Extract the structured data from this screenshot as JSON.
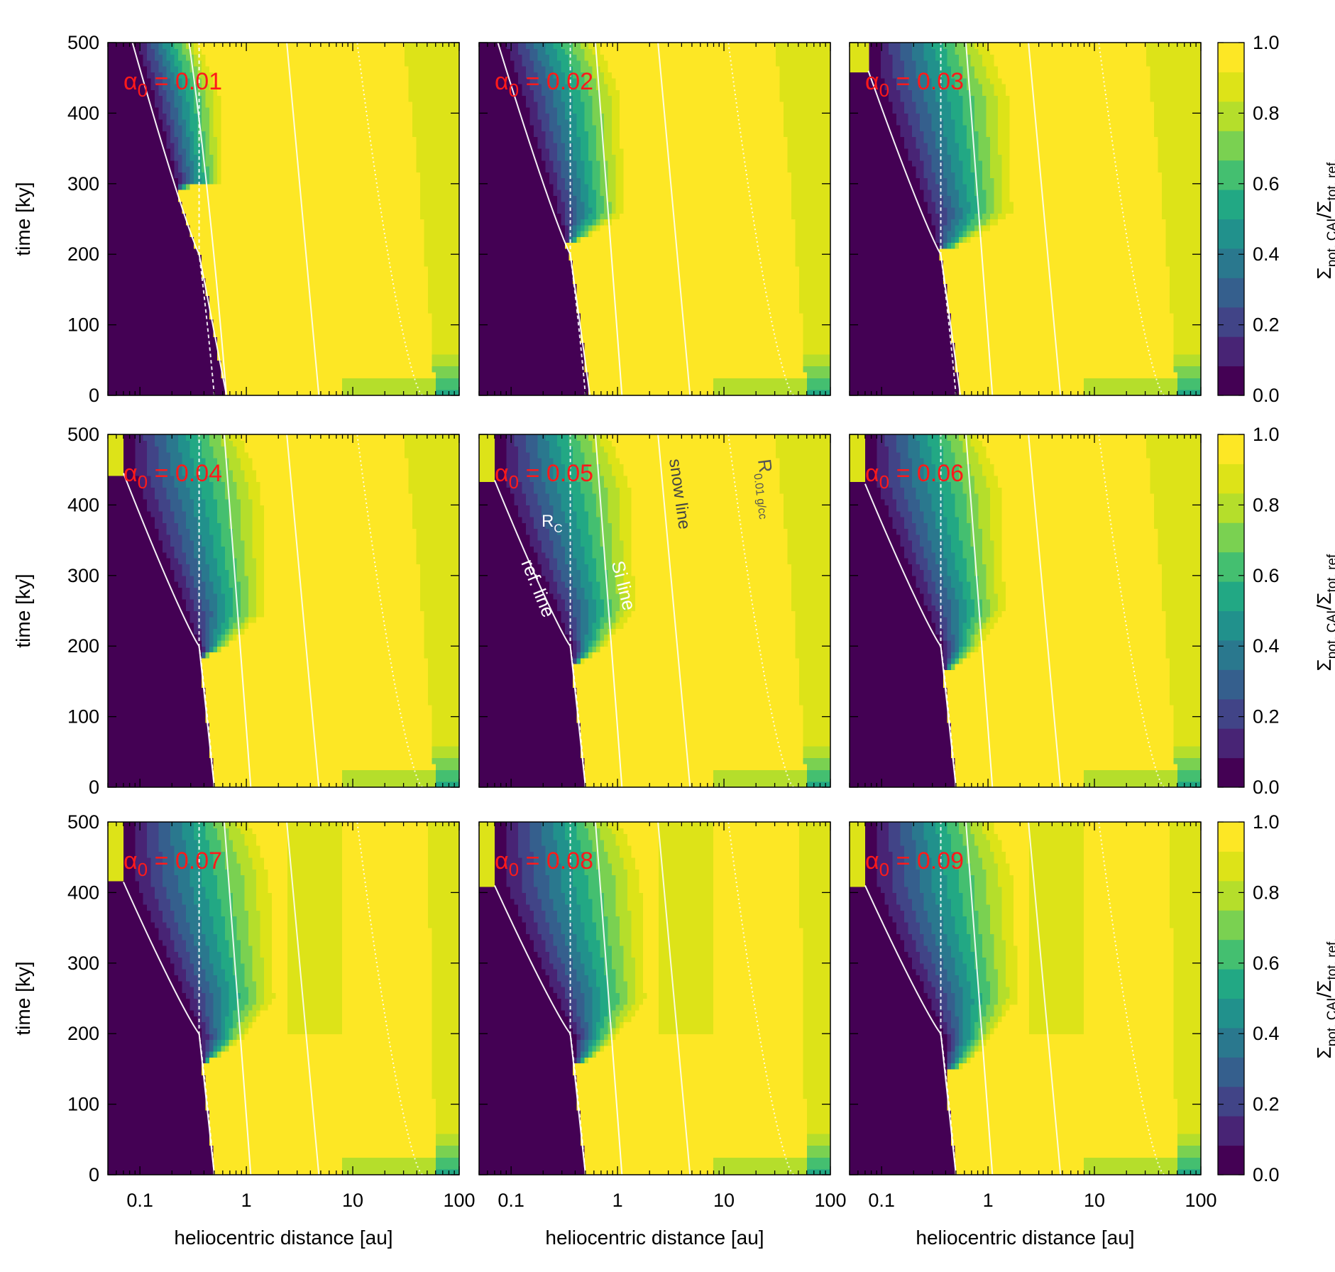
{
  "chart_data": {
    "type": "heatmap",
    "layout": "3x3 grid of panels",
    "x_axis": {
      "label": "heliocentric distance [au]",
      "scale": "log",
      "range": [
        0.05,
        100
      ],
      "tick_labels": [
        "0.1",
        "1",
        "10",
        "100"
      ],
      "tick_values": [
        0.1,
        1,
        10,
        100
      ]
    },
    "y_axis": {
      "label": "time [ky]",
      "range": [
        0,
        500
      ],
      "tick_labels": [
        "0",
        "100",
        "200",
        "300",
        "400",
        "500"
      ],
      "tick_values": [
        0,
        100,
        200,
        300,
        400,
        500
      ]
    },
    "colorbar": {
      "label_main": "Σ",
      "label_sub1": "pot. CAI",
      "label_slash": "/Σ",
      "label_sub2": "tot. ref.",
      "range": [
        0,
        1
      ],
      "levels": 12,
      "tick_labels": [
        "0.0",
        "0.2",
        "0.4",
        "0.6",
        "0.8",
        "1.0"
      ],
      "tick_values": [
        0,
        0.2,
        0.4,
        0.6,
        0.8,
        1.0
      ],
      "palette": [
        "#440154",
        "#482475",
        "#414487",
        "#355f8d",
        "#2a788e",
        "#21918c",
        "#22a884",
        "#44bf70",
        "#7ad151",
        "#b5de2b",
        "#dde318",
        "#fde725"
      ]
    },
    "annotations": {
      "rc": "R",
      "rc_sub": "C",
      "ref_line": "ref. line",
      "si_line": "Si line",
      "snow_line": "snow line",
      "r001": "R",
      "r001_sub": "0.01 g/cc"
    },
    "panels": [
      {
        "label_symbol": "α",
        "label_sub": "0",
        "label_value": " = 0.01",
        "alpha0": 0.01,
        "ref_base": 0.65,
        "ref_top": 0.085,
        "rc_tmax": 500,
        "shade_start": 295,
        "shade_peak": 300,
        "shade_extent": 0.65,
        "pale_inner": 0.9,
        "pale_outer": 0.7
      },
      {
        "label_symbol": "α",
        "label_sub": "0",
        "label_value": " = 0.02",
        "alpha0": 0.02,
        "ref_base": 0.55,
        "ref_top": 0.075,
        "rc_tmax": 500,
        "shade_start": 215,
        "shade_peak": 260,
        "shade_extent": 1.3,
        "pale_inner": 0.9,
        "pale_outer": 0.55
      },
      {
        "label_symbol": "α",
        "label_sub": "0",
        "label_value": " = 0.03",
        "alpha0": 0.03,
        "ref_base": 0.55,
        "ref_top": 0.075,
        "rc_tmax": 460,
        "shade_start": 205,
        "shade_peak": 260,
        "shade_extent": 2.0,
        "pale_inner": 0.9,
        "pale_outer": 0.6
      },
      {
        "label_symbol": "α",
        "label_sub": "0",
        "label_value": " = 0.04",
        "alpha0": 0.04,
        "ref_base": 0.5,
        "ref_top": 0.07,
        "rc_tmax": 445,
        "shade_start": 185,
        "shade_peak": 250,
        "shade_extent": 1.8,
        "pale_inner": 0.9,
        "pale_outer": 0.55
      },
      {
        "label_symbol": "α",
        "label_sub": "0",
        "label_value": " = 0.05",
        "alpha0": 0.05,
        "ref_base": 0.5,
        "ref_top": 0.07,
        "rc_tmax": 435,
        "shade_start": 175,
        "shade_peak": 250,
        "shade_extent": 1.7,
        "pale_inner": 0.9,
        "pale_outer": 0.5
      },
      {
        "label_symbol": "α",
        "label_sub": "0",
        "label_value": " = 0.06",
        "alpha0": 0.06,
        "ref_base": 0.5,
        "ref_top": 0.07,
        "rc_tmax": 430,
        "shade_start": 165,
        "shade_peak": 250,
        "shade_extent": 1.7,
        "pale_inner": 0.9,
        "pale_outer": 0.5
      },
      {
        "label_symbol": "α",
        "label_sub": "0",
        "label_value": " = 0.07",
        "alpha0": 0.07,
        "ref_base": 0.5,
        "ref_top": 0.07,
        "rc_tmax": 415,
        "shade_start": 160,
        "shade_peak": 250,
        "shade_extent": 2.2,
        "pale_inner": 0.85,
        "pale_outer": 1.6
      },
      {
        "label_symbol": "α",
        "label_sub": "0",
        "label_value": " = 0.08",
        "alpha0": 0.08,
        "ref_base": 0.5,
        "ref_top": 0.07,
        "rc_tmax": 410,
        "shade_start": 155,
        "shade_peak": 250,
        "shade_extent": 2.2,
        "pale_inner": 0.85,
        "pale_outer": 1.8
      },
      {
        "label_symbol": "α",
        "label_sub": "0",
        "label_value": " = 0.09",
        "alpha0": 0.09,
        "ref_base": 0.5,
        "ref_top": 0.07,
        "rc_tmax": 410,
        "shade_start": 145,
        "shade_peak": 250,
        "shade_extent": 2.3,
        "pale_inner": 0.85,
        "pale_outer": 2.0
      }
    ]
  }
}
